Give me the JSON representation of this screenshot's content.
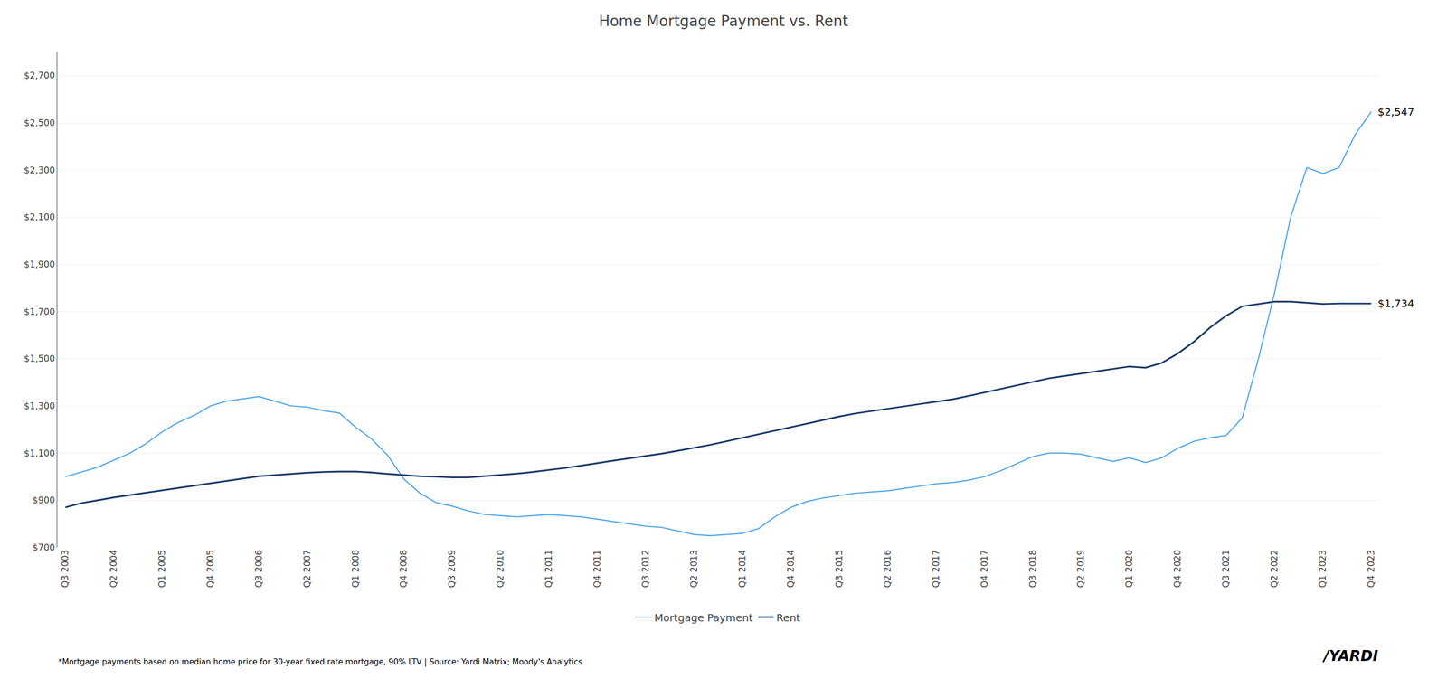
{
  "chart_data": {
    "type": "line",
    "title": "Home Mortgage Payment vs. Rent",
    "categories": [
      "Q3 2003",
      null,
      null,
      "Q2 2004",
      null,
      null,
      "Q1 2005",
      null,
      null,
      "Q4 2005",
      null,
      null,
      "Q3 2006",
      null,
      null,
      "Q2 2007",
      null,
      null,
      "Q1 2008",
      null,
      null,
      "Q4 2008",
      null,
      null,
      "Q3 2009",
      null,
      null,
      "Q2 2010",
      null,
      null,
      "Q1 2011",
      null,
      null,
      "Q4 2011",
      null,
      null,
      "Q3 2012",
      null,
      null,
      "Q2 2013",
      null,
      null,
      "Q1 2014",
      null,
      null,
      "Q4 2014",
      null,
      null,
      "Q3 2015",
      null,
      null,
      "Q2 2016",
      null,
      null,
      "Q1 2017",
      null,
      null,
      "Q4 2017",
      null,
      null,
      "Q3 2018",
      null,
      null,
      "Q2 2019",
      null,
      null,
      "Q1 2020",
      null,
      null,
      "Q4 2020",
      null,
      null,
      "Q3 2021",
      null,
      null,
      "Q2 2022",
      null,
      null,
      "Q1 2023",
      null,
      null,
      "Q4 2023"
    ],
    "series": [
      {
        "name": "Mortgage Payment",
        "color": "#4da6e8",
        "values": [
          1000,
          1020,
          1040,
          1070,
          1100,
          1140,
          1190,
          1230,
          1260,
          1300,
          1320,
          1330,
          1340,
          1320,
          1300,
          1295,
          1280,
          1270,
          1210,
          1160,
          1090,
          990,
          930,
          890,
          875,
          855,
          840,
          835,
          830,
          835,
          840,
          835,
          830,
          820,
          810,
          800,
          790,
          785,
          770,
          755,
          750,
          755,
          760,
          780,
          830,
          870,
          895,
          910,
          920,
          930,
          935,
          940,
          950,
          960,
          970,
          975,
          985,
          1000,
          1025,
          1055,
          1085,
          1100,
          1100,
          1095,
          1080,
          1065,
          1080,
          1060,
          1080,
          1120,
          1150,
          1165,
          1175,
          1250,
          1500,
          1780,
          2100,
          2310,
          2285,
          2310,
          2450,
          2547
        ]
      },
      {
        "name": "Rent",
        "color": "#1a3a6b",
        "values": [
          870,
          888,
          900,
          912,
          922,
          932,
          942,
          952,
          962,
          972,
          982,
          992,
          1002,
          1007,
          1012,
          1017,
          1020,
          1022,
          1022,
          1018,
          1012,
          1007,
          1002,
          1000,
          997,
          997,
          1002,
          1007,
          1013,
          1020,
          1028,
          1037,
          1047,
          1058,
          1068,
          1078,
          1088,
          1098,
          1110,
          1122,
          1135,
          1150,
          1165,
          1180,
          1195,
          1210,
          1225,
          1240,
          1255,
          1268,
          1278,
          1288,
          1298,
          1308,
          1318,
          1328,
          1342,
          1357,
          1372,
          1387,
          1402,
          1417,
          1427,
          1437,
          1447,
          1457,
          1467,
          1462,
          1482,
          1522,
          1572,
          1632,
          1682,
          1722,
          1732,
          1742,
          1742,
          1737,
          1732,
          1734,
          1734,
          1734
        ]
      }
    ],
    "ylim": [
      700,
      2800
    ],
    "yticks": [
      {
        "value": 700,
        "label": "$700"
      },
      {
        "value": 900,
        "label": "$900"
      },
      {
        "value": 1100,
        "label": "$1,100"
      },
      {
        "value": 1300,
        "label": "$1,300"
      },
      {
        "value": 1500,
        "label": "$1,500"
      },
      {
        "value": 1700,
        "label": "$1,700"
      },
      {
        "value": 1900,
        "label": "$1,900"
      },
      {
        "value": 2100,
        "label": "$2,100"
      },
      {
        "value": 2300,
        "label": "$2,300"
      },
      {
        "value": 2500,
        "label": "$2,500"
      },
      {
        "value": 2700,
        "label": "$2,700"
      }
    ],
    "grid": true,
    "legend": "bottom",
    "annotations": [
      {
        "text": "$2,547",
        "x": "Q4 2023",
        "y": 2547
      },
      {
        "text": "$1,734",
        "x": "Q4 2023",
        "y": 1734
      }
    ],
    "footnote": "*Mortgage payments based on median home price for 30-year fixed rate mortgage, 90% LTV | Source: Yardi Matrix; Moody's Analytics",
    "logo": "/YARDI"
  }
}
